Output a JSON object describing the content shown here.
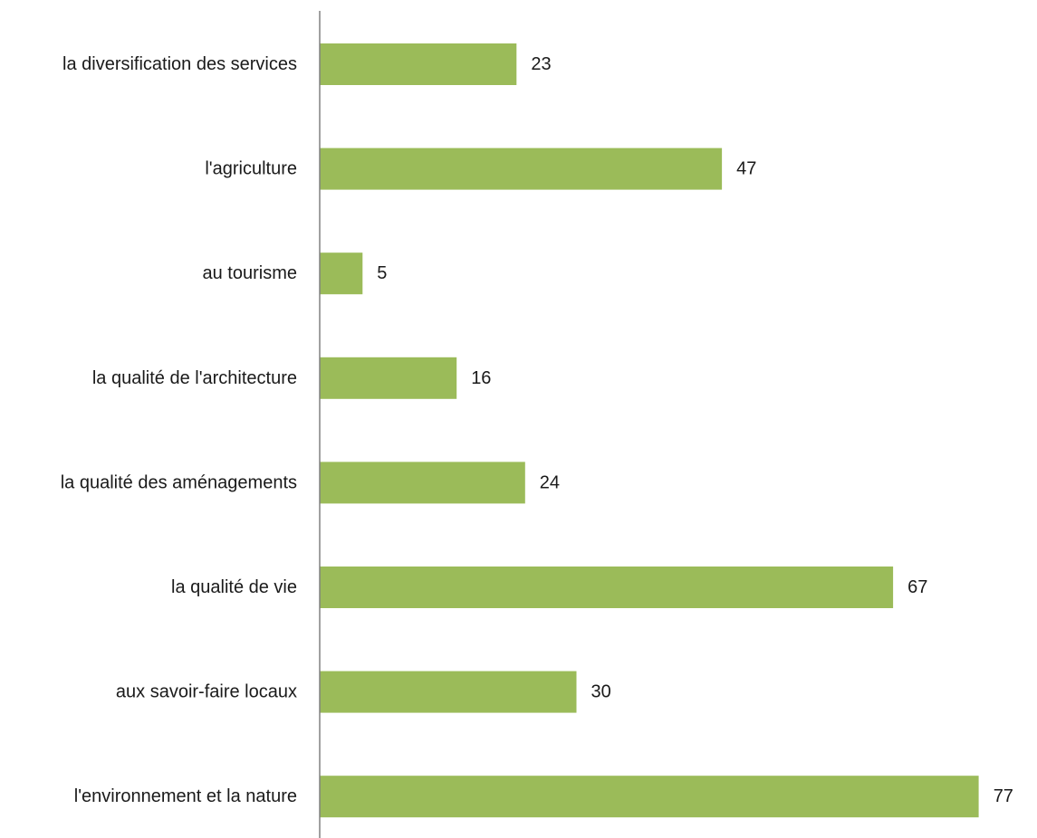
{
  "chart_data": {
    "type": "bar",
    "orientation": "horizontal",
    "categories": [
      "la diversification des services",
      "l'agriculture",
      "au tourisme",
      "la qualité de l'architecture",
      "la qualité des aménagements",
      "la qualité de vie",
      "aux savoir-faire locaux",
      "l'environnement et la nature"
    ],
    "values": [
      23,
      47,
      5,
      16,
      24,
      67,
      30,
      77
    ],
    "xlim": [
      0,
      78
    ],
    "grid": false,
    "legend": "none",
    "data_labels": true
  },
  "colors": {
    "bar": "#9BBB59",
    "axis": "#808080",
    "text": "#1a1a1a"
  }
}
